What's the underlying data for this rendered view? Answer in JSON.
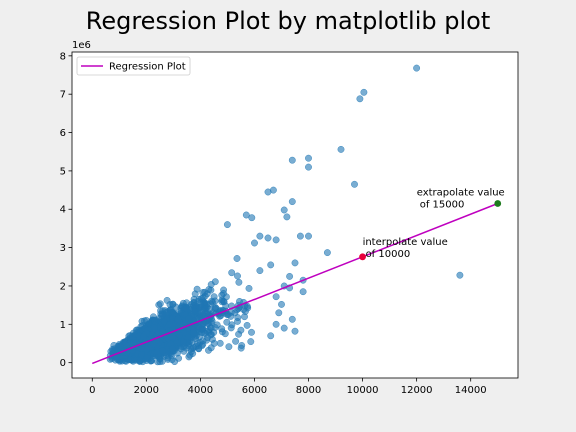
{
  "chart_data": {
    "type": "scatter",
    "title": "Regression Plot by matplotlib plot",
    "xlabel": "",
    "ylabel": "",
    "y_offset_label": "1e6",
    "xlim": [
      -750,
      15750
    ],
    "ylim": [
      -0.4,
      8.1
    ],
    "y_unit_scale": 1000000,
    "x_ticks": [
      0,
      2000,
      4000,
      6000,
      8000,
      10000,
      12000,
      14000
    ],
    "y_ticks": [
      0,
      1,
      2,
      3,
      4,
      5,
      6,
      7,
      8
    ],
    "x_tick_labels": [
      "0",
      "2000",
      "4000",
      "6000",
      "8000",
      "10000",
      "12000",
      "14000"
    ],
    "y_tick_labels": [
      "0",
      "1",
      "2",
      "3",
      "4",
      "5",
      "6",
      "7",
      "8"
    ],
    "grid": false,
    "legend": {
      "placement": "top-left",
      "entries": [
        "Regression Plot"
      ]
    },
    "colors": {
      "points": "#1f77b4",
      "line": "#bf00bf",
      "interpolate": "#e8003a",
      "extrapolate": "#1e7a1e"
    },
    "scatter_points": [
      [
        7400,
        5.28
      ],
      [
        8000,
        5.33
      ],
      [
        8000,
        5.1
      ],
      [
        9200,
        5.56
      ],
      [
        9700,
        4.65
      ],
      [
        9900,
        6.88
      ],
      [
        10050,
        7.05
      ],
      [
        12000,
        7.68
      ],
      [
        13600,
        2.28
      ],
      [
        6500,
        4.45
      ],
      [
        6700,
        4.5
      ],
      [
        7400,
        4.2
      ],
      [
        7200,
        3.8
      ],
      [
        7100,
        3.98
      ],
      [
        7700,
        3.3
      ],
      [
        8000,
        3.3
      ],
      [
        8700,
        2.87
      ],
      [
        7500,
        2.6
      ],
      [
        7300,
        2.25
      ],
      [
        7800,
        2.15
      ],
      [
        7100,
        2.0
      ],
      [
        7300,
        1.95
      ],
      [
        7800,
        1.85
      ],
      [
        6800,
        1.72
      ],
      [
        7000,
        1.52
      ],
      [
        7400,
        1.13
      ],
      [
        7100,
        0.9
      ],
      [
        7500,
        0.82
      ],
      [
        6900,
        1.3
      ],
      [
        6200,
        3.3
      ],
      [
        6500,
        3.25
      ],
      [
        6800,
        3.2
      ],
      [
        6000,
        3.12
      ],
      [
        6200,
        2.4
      ],
      [
        6600,
        2.55
      ],
      [
        6800,
        1.0
      ],
      [
        6600,
        0.7
      ],
      [
        5900,
        3.78
      ],
      [
        5700,
        3.85
      ],
      [
        5000,
        3.6
      ]
    ],
    "cloud_model": {
      "n": 2400,
      "seed": 7,
      "x_mode": 2200,
      "x_max": 6000,
      "slope": 270,
      "spread": 0.38
    },
    "regression_line": {
      "x": [
        0,
        15000
      ],
      "y": [
        -0.02,
        4.15
      ]
    },
    "annotations": [
      {
        "x": 10000,
        "y": 2.76,
        "line1": "interpolate value",
        "line2": "of 10000",
        "role": "interpolate"
      },
      {
        "x": 15000,
        "y": 4.15,
        "line1": "extrapolate value",
        "line2": "of 15000",
        "role": "extrapolate"
      }
    ]
  }
}
